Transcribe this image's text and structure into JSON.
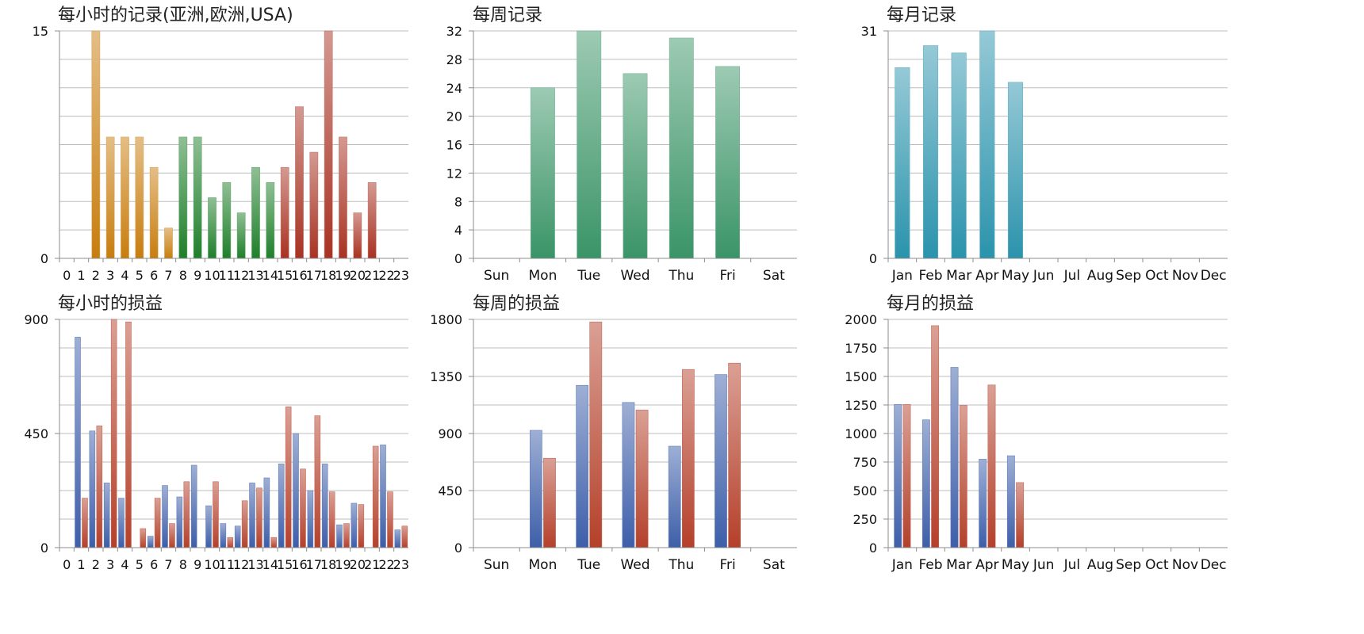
{
  "colors": {
    "asia": "#c87d0d",
    "europe": "#1f7f2a",
    "usa": "#a83222",
    "weekly_records": "#3a9467",
    "monthly_records": "#2a93ac",
    "profit_blue": "#3d5ea9",
    "profit_red": "#b4402a"
  },
  "chart_data": [
    {
      "type": "bar",
      "title": "每小时的记录(亚洲,欧洲,USA)",
      "categories": [
        "0",
        "1",
        "2",
        "3",
        "4",
        "5",
        "6",
        "7",
        "8",
        "9",
        "10",
        "11",
        "12",
        "13",
        "14",
        "15",
        "16",
        "17",
        "18",
        "19",
        "20",
        "21",
        "22",
        "23"
      ],
      "values": [
        0,
        0,
        15,
        8,
        8,
        8,
        6,
        2,
        8,
        8,
        4,
        5,
        3,
        6,
        5,
        6,
        10,
        7,
        15,
        8,
        3,
        5,
        0,
        0
      ],
      "bar_color_groups": [
        {
          "from": 0,
          "to": 7,
          "color_key": "asia"
        },
        {
          "from": 8,
          "to": 14,
          "color_key": "europe"
        },
        {
          "from": 15,
          "to": 23,
          "color_key": "usa"
        }
      ],
      "ylim": [
        0,
        15
      ],
      "yticks": [
        0,
        15
      ],
      "grid_lines": 8,
      "grid": true
    },
    {
      "type": "bar",
      "title": "每周记录",
      "categories": [
        "Sun",
        "Mon",
        "Tue",
        "Wed",
        "Thu",
        "Fri",
        "Sat"
      ],
      "values": [
        0,
        24,
        32,
        26,
        31,
        27,
        0
      ],
      "color_key": "weekly_records",
      "ylim": [
        0,
        32
      ],
      "yticks": [
        0,
        4,
        8,
        12,
        16,
        20,
        24,
        28,
        32
      ],
      "grid_lines": 8,
      "grid": true
    },
    {
      "type": "bar",
      "title": "每月记录",
      "categories": [
        "Jan",
        "Feb",
        "Mar",
        "Apr",
        "May",
        "Jun",
        "Jul",
        "Aug",
        "Sep",
        "Oct",
        "Nov",
        "Dec"
      ],
      "values": [
        26,
        29,
        28,
        31,
        24,
        0,
        0,
        0,
        0,
        0,
        0,
        0
      ],
      "color_key": "monthly_records",
      "ylim": [
        0,
        31
      ],
      "yticks": [
        0,
        31
      ],
      "grid_lines": 8,
      "grid": true
    },
    {
      "type": "bar",
      "title": "每小时的损益",
      "categories": [
        "0",
        "1",
        "2",
        "3",
        "4",
        "5",
        "6",
        "7",
        "8",
        "9",
        "10",
        "11",
        "12",
        "13",
        "14",
        "15",
        "16",
        "17",
        "18",
        "19",
        "20",
        "21",
        "22",
        "23"
      ],
      "series": [
        {
          "color_key": "profit_blue",
          "values": [
            0,
            830,
            460,
            255,
            195,
            0,
            45,
            245,
            200,
            325,
            165,
            95,
            85,
            255,
            275,
            330,
            450,
            225,
            330,
            90,
            175,
            0,
            405,
            70
          ]
        },
        {
          "color_key": "profit_red",
          "values": [
            0,
            195,
            480,
            900,
            890,
            75,
            195,
            95,
            260,
            0,
            260,
            40,
            185,
            235,
            40,
            555,
            310,
            520,
            220,
            95,
            170,
            400,
            220,
            85
          ]
        }
      ],
      "ylim": [
        0,
        900
      ],
      "yticks": [
        0,
        450,
        900
      ],
      "grid_lines": 8,
      "grid": true
    },
    {
      "type": "bar",
      "title": "每周的损益",
      "categories": [
        "Sun",
        "Mon",
        "Tue",
        "Wed",
        "Thu",
        "Fri",
        "Sat"
      ],
      "series": [
        {
          "color_key": "profit_blue",
          "values": [
            0,
            925,
            1280,
            1145,
            800,
            1365,
            0
          ]
        },
        {
          "color_key": "profit_red",
          "values": [
            0,
            705,
            1780,
            1085,
            1405,
            1455,
            0
          ]
        }
      ],
      "ylim": [
        0,
        1800
      ],
      "yticks": [
        0,
        450,
        900,
        1350,
        1800
      ],
      "grid_lines": 8,
      "grid": true
    },
    {
      "type": "bar",
      "title": "每月的损益",
      "categories": [
        "Jan",
        "Feb",
        "Mar",
        "Apr",
        "May",
        "Jun",
        "Jul",
        "Aug",
        "Sep",
        "Oct",
        "Nov",
        "Dec"
      ],
      "series": [
        {
          "color_key": "profit_blue",
          "values": [
            1255,
            1120,
            1580,
            775,
            805,
            0,
            0,
            0,
            0,
            0,
            0,
            0
          ]
        },
        {
          "color_key": "profit_red",
          "values": [
            1255,
            1945,
            1245,
            1425,
            570,
            0,
            0,
            0,
            0,
            0,
            0,
            0
          ]
        }
      ],
      "ylim": [
        0,
        2000
      ],
      "yticks": [
        0,
        250,
        500,
        750,
        1000,
        1250,
        1500,
        1750,
        2000
      ],
      "grid_lines": 8,
      "grid": true
    }
  ]
}
